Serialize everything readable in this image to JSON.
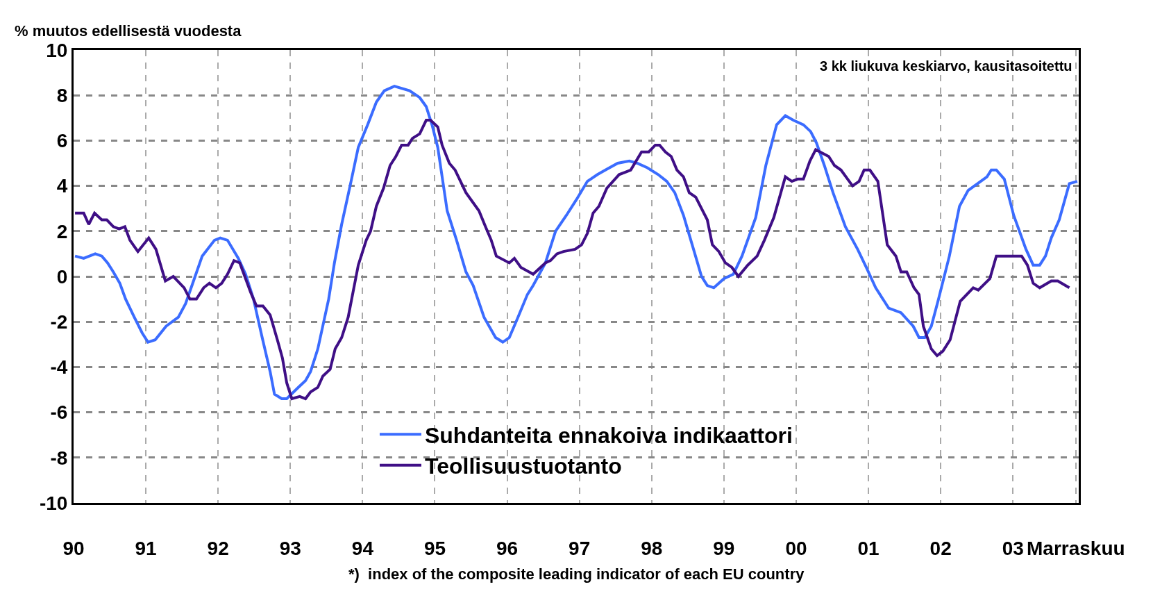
{
  "chart_data": {
    "type": "line",
    "ylabel": "% muutos edellisestä vuodesta",
    "annotations": [
      "3 kk liukuva keskiarvo, kausitasoitettu",
      "*)  index of the composite leading indicator of each EU country"
    ],
    "xlim": [
      1990,
      2003.91
    ],
    "xticks": [
      {
        "value": 1990,
        "label": "90"
      },
      {
        "value": 1991,
        "label": "91"
      },
      {
        "value": 1992,
        "label": "92"
      },
      {
        "value": 1993,
        "label": "93"
      },
      {
        "value": 1994,
        "label": "94"
      },
      {
        "value": 1995,
        "label": "95"
      },
      {
        "value": 1996,
        "label": "96"
      },
      {
        "value": 1997,
        "label": "97"
      },
      {
        "value": 1998,
        "label": "98"
      },
      {
        "value": 1999,
        "label": "99"
      },
      {
        "value": 2000,
        "label": "00"
      },
      {
        "value": 2001,
        "label": "01"
      },
      {
        "value": 2002,
        "label": "02"
      },
      {
        "value": 2003,
        "label": "03"
      },
      {
        "value": 2003.87,
        "label": "Marraskuu"
      }
    ],
    "ylim": [
      -10,
      10
    ],
    "yticks": [
      -10,
      -8,
      -6,
      -4,
      -2,
      0,
      2,
      4,
      6,
      8,
      10
    ],
    "grid": true,
    "legend": "bottom",
    "marker": "none",
    "line_style": "solid",
    "series": [
      {
        "name": "Suhdanteita ennakoiva indikaattori",
        "color": "#3b6cff",
        "x": [
          1990.02,
          1990.14,
          1990.22,
          1990.3,
          1990.39,
          1990.47,
          1990.55,
          1990.64,
          1990.72,
          1990.84,
          1990.95,
          1991.03,
          1991.13,
          1991.28,
          1991.45,
          1991.55,
          1991.66,
          1991.78,
          1991.95,
          1992.03,
          1992.13,
          1992.28,
          1992.38,
          1992.49,
          1992.61,
          1992.72,
          1992.78,
          1992.88,
          1992.95,
          1993.11,
          1993.21,
          1993.28,
          1993.38,
          1993.53,
          1993.61,
          1993.71,
          1993.84,
          1993.94,
          1994.07,
          1994.19,
          1994.3,
          1994.44,
          1994.65,
          1994.79,
          1994.88,
          1994.96,
          1995.04,
          1995.17,
          1995.3,
          1995.43,
          1995.53,
          1995.68,
          1995.84,
          1995.94,
          1996.03,
          1996.15,
          1996.28,
          1996.36,
          1996.53,
          1996.67,
          1996.82,
          1996.96,
          1997.11,
          1997.25,
          1997.36,
          1997.53,
          1997.69,
          1997.8,
          1997.94,
          1998.09,
          1998.21,
          1998.32,
          1998.44,
          1998.57,
          1998.69,
          1998.77,
          1998.86,
          1999.0,
          1999.13,
          1999.25,
          1999.44,
          1999.58,
          1999.73,
          1999.85,
          1999.96,
          2000.1,
          2000.2,
          2000.28,
          2000.39,
          2000.51,
          2000.68,
          2000.85,
          2000.97,
          2001.1,
          2001.28,
          2001.45,
          2001.62,
          2001.7,
          2001.78,
          2001.87,
          2001.97,
          2002.12,
          2002.26,
          2002.38,
          2002.51,
          2002.64,
          2002.7,
          2002.77,
          2002.88,
          2003.01,
          2003.18,
          2003.28,
          2003.37,
          2003.45,
          2003.53,
          2003.64,
          2003.78,
          2003.89
        ],
        "values": [
          0.9,
          0.8,
          0.9,
          1.0,
          0.9,
          0.6,
          0.2,
          -0.3,
          -1.0,
          -1.8,
          -2.5,
          -2.9,
          -2.8,
          -2.2,
          -1.8,
          -1.2,
          -0.2,
          0.9,
          1.6,
          1.7,
          1.6,
          0.8,
          0.1,
          -1.0,
          -2.7,
          -4.2,
          -5.2,
          -5.4,
          -5.4,
          -4.9,
          -4.6,
          -4.2,
          -3.2,
          -1.0,
          0.6,
          2.3,
          4.2,
          5.7,
          6.7,
          7.7,
          8.2,
          8.4,
          8.2,
          7.9,
          7.5,
          6.7,
          5.7,
          2.9,
          1.6,
          0.2,
          -0.4,
          -1.8,
          -2.7,
          -2.9,
          -2.7,
          -1.8,
          -0.8,
          -0.4,
          0.6,
          2.0,
          2.7,
          3.4,
          4.2,
          4.5,
          4.7,
          5.0,
          5.1,
          5.0,
          4.8,
          4.5,
          4.2,
          3.7,
          2.7,
          1.3,
          0.0,
          -0.4,
          -0.5,
          -0.1,
          0.1,
          0.9,
          2.6,
          4.9,
          6.7,
          7.1,
          6.9,
          6.7,
          6.4,
          5.9,
          4.9,
          3.7,
          2.2,
          1.2,
          0.4,
          -0.5,
          -1.4,
          -1.6,
          -2.2,
          -2.7,
          -2.7,
          -2.2,
          -1.0,
          0.9,
          3.1,
          3.8,
          4.1,
          4.4,
          4.7,
          4.7,
          4.3,
          2.7,
          1.2,
          0.5,
          0.5,
          0.9,
          1.7,
          2.5,
          4.1,
          4.2
        ]
      },
      {
        "name": "Teollisuustuotanto",
        "color": "#3f0f86",
        "x": [
          1990.02,
          1990.14,
          1990.21,
          1990.29,
          1990.39,
          1990.46,
          1990.55,
          1990.63,
          1990.71,
          1990.78,
          1990.89,
          1991.04,
          1991.14,
          1991.27,
          1991.38,
          1991.53,
          1991.61,
          1991.7,
          1991.8,
          1991.88,
          1991.97,
          1992.05,
          1992.13,
          1992.22,
          1992.3,
          1992.45,
          1992.53,
          1992.62,
          1992.72,
          1992.82,
          1992.89,
          1992.95,
          1993.02,
          1993.13,
          1993.21,
          1993.28,
          1993.38,
          1993.45,
          1993.55,
          1993.62,
          1993.71,
          1993.8,
          1993.94,
          1994.05,
          1994.11,
          1994.19,
          1994.29,
          1994.38,
          1994.46,
          1994.54,
          1994.63,
          1994.69,
          1994.79,
          1994.88,
          1994.94,
          1995.04,
          1995.1,
          1995.2,
          1995.28,
          1995.43,
          1995.61,
          1995.7,
          1995.78,
          1995.85,
          1996.03,
          1996.1,
          1996.19,
          1996.36,
          1996.53,
          1996.6,
          1996.69,
          1996.78,
          1996.94,
          1997.03,
          1997.11,
          1997.19,
          1997.27,
          1997.38,
          1997.55,
          1997.63,
          1997.71,
          1997.86,
          1997.96,
          1998.05,
          1998.11,
          1998.19,
          1998.27,
          1998.35,
          1998.44,
          1998.52,
          1998.61,
          1998.77,
          1998.84,
          1998.93,
          1999.02,
          1999.11,
          1999.2,
          1999.33,
          1999.46,
          1999.56,
          1999.69,
          1999.85,
          1999.94,
          2000.02,
          2000.1,
          2000.19,
          2000.27,
          2000.45,
          2000.53,
          2000.62,
          2000.78,
          2000.87,
          2000.94,
          2001.02,
          2001.13,
          2001.26,
          2001.38,
          2001.45,
          2001.53,
          2001.63,
          2001.7,
          2001.76,
          2001.87,
          2001.95,
          2002.03,
          2002.13,
          2002.27,
          2002.45,
          2002.52,
          2002.68,
          2002.77,
          2003.12,
          2003.2,
          2003.28,
          2003.37,
          2003.53,
          2003.62,
          2003.78
        ],
        "values": [
          2.8,
          2.8,
          2.3,
          2.8,
          2.5,
          2.5,
          2.2,
          2.1,
          2.2,
          1.6,
          1.1,
          1.7,
          1.2,
          -0.2,
          0.0,
          -0.5,
          -1.0,
          -1.0,
          -0.5,
          -0.3,
          -0.5,
          -0.3,
          0.1,
          0.7,
          0.6,
          -0.7,
          -1.3,
          -1.3,
          -1.7,
          -2.8,
          -3.6,
          -4.7,
          -5.4,
          -5.3,
          -5.4,
          -5.1,
          -4.9,
          -4.4,
          -4.1,
          -3.2,
          -2.7,
          -1.8,
          0.5,
          1.6,
          2.0,
          3.1,
          3.9,
          4.9,
          5.3,
          5.8,
          5.8,
          6.1,
          6.3,
          6.9,
          6.9,
          6.6,
          5.8,
          5.0,
          4.7,
          3.7,
          2.9,
          2.2,
          1.6,
          0.9,
          0.6,
          0.8,
          0.4,
          0.1,
          0.6,
          0.7,
          1.0,
          1.1,
          1.2,
          1.4,
          1.9,
          2.8,
          3.1,
          3.9,
          4.5,
          4.6,
          4.7,
          5.5,
          5.5,
          5.8,
          5.8,
          5.5,
          5.3,
          4.7,
          4.4,
          3.7,
          3.5,
          2.5,
          1.4,
          1.1,
          0.6,
          0.4,
          0.0,
          0.5,
          0.9,
          1.6,
          2.6,
          4.4,
          4.2,
          4.3,
          4.3,
          5.1,
          5.6,
          5.3,
          4.9,
          4.7,
          4.0,
          4.2,
          4.7,
          4.7,
          4.2,
          1.4,
          0.9,
          0.2,
          0.2,
          -0.5,
          -0.8,
          -2.2,
          -3.2,
          -3.5,
          -3.3,
          -2.8,
          -1.1,
          -0.5,
          -0.6,
          -0.1,
          0.9,
          0.9,
          0.5,
          -0.3,
          -0.5,
          -0.2,
          -0.2,
          -0.5
        ]
      }
    ]
  }
}
